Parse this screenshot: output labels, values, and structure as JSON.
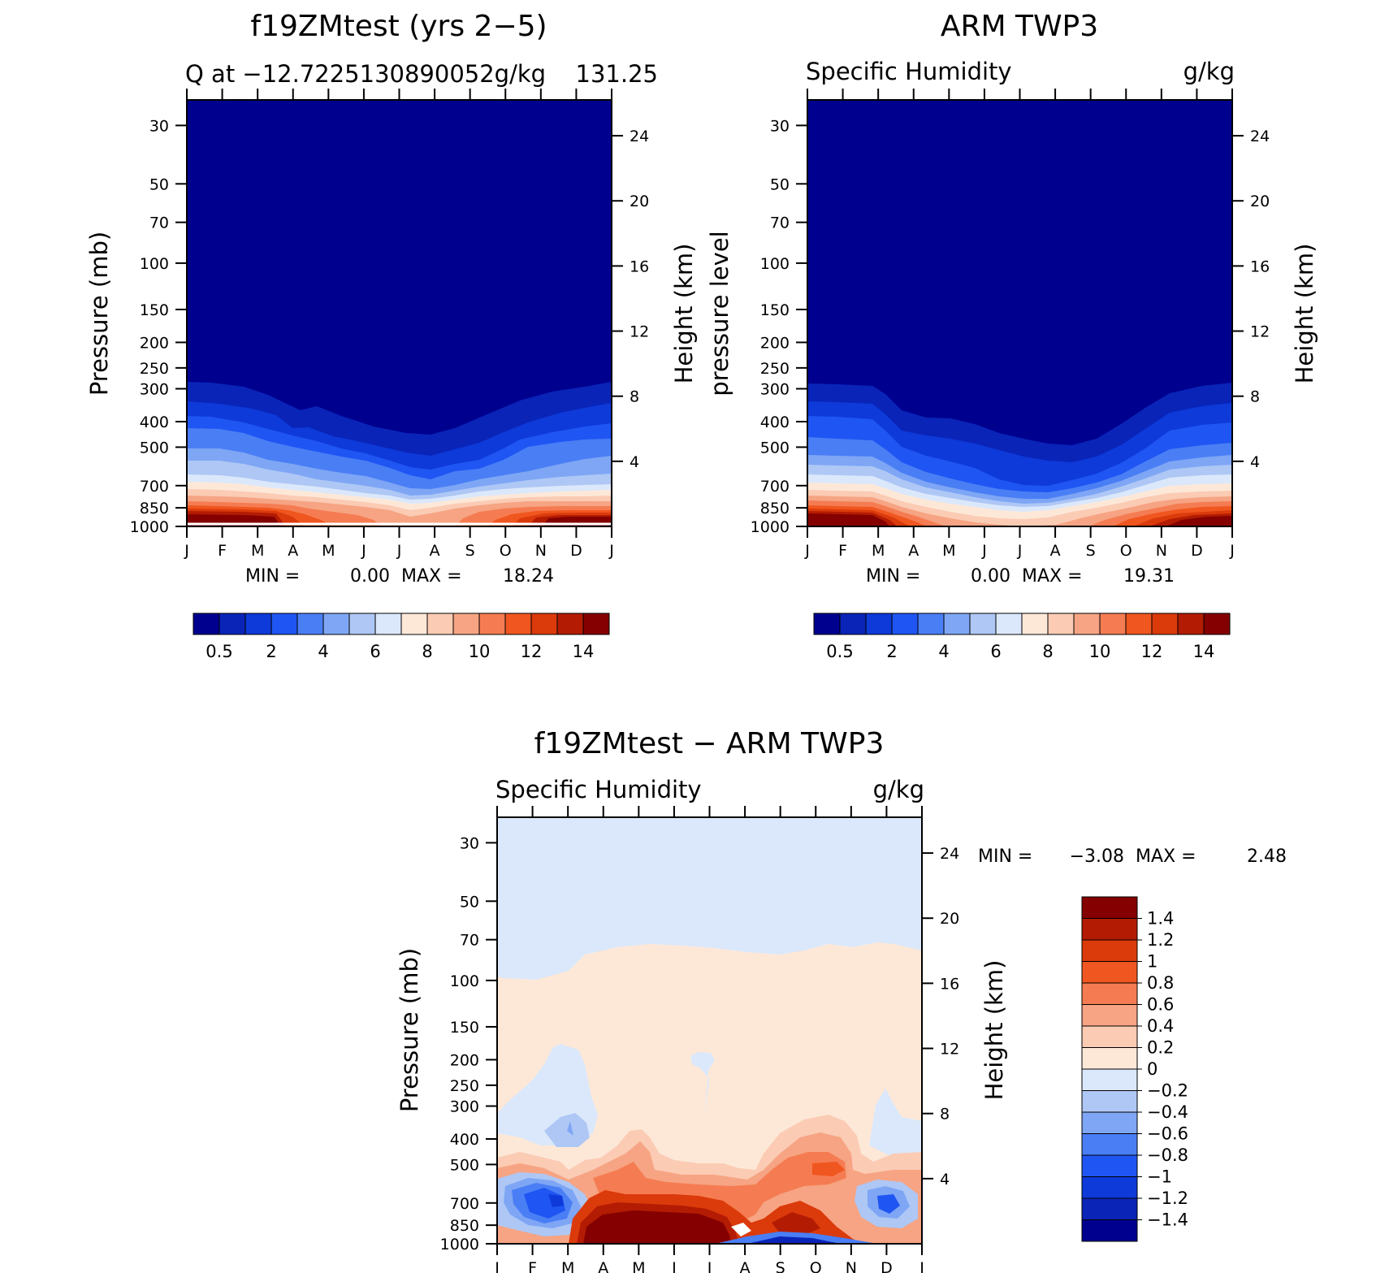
{
  "chart_data": [
    {
      "type": "heatmap",
      "id": "p1",
      "title": "f19ZMtest (yrs 2−5)",
      "left_label": "Q at −12.7225130890052g/kg",
      "right_label": "131.25",
      "xlabel": "",
      "ylabel": "Pressure (mb)",
      "y2label": "Height (km)",
      "x_ticks": [
        "J",
        "F",
        "M",
        "A",
        "M",
        "J",
        "J",
        "A",
        "S",
        "O",
        "N",
        "D",
        "J"
      ],
      "y_ticks": [
        30,
        50,
        70,
        100,
        150,
        200,
        250,
        300,
        400,
        500,
        700,
        850,
        1000
      ],
      "y2_ticks": [
        24,
        20,
        16,
        12,
        8,
        4
      ],
      "ylim": [
        1000,
        24
      ],
      "stats": {
        "min_label": "MIN =",
        "min": "0.00",
        "max_label": "MAX =",
        "max": "18.24"
      },
      "legend_levels": [
        0.5,
        1,
        2,
        3,
        4,
        5,
        6,
        7,
        8,
        9,
        10,
        11,
        12,
        13,
        14
      ],
      "legend_labels": [
        "0.5",
        "2",
        "4",
        "6",
        "8",
        "10",
        "12",
        "14"
      ],
      "colors": [
        "#00008f",
        "#0a24b8",
        "#0d3ad9",
        "#1f55f2",
        "#4a7ef5",
        "#7ea6f5",
        "#aec7f5",
        "#dbe8fb",
        "#fde8d8",
        "#fbcbb4",
        "#f6a483",
        "#f57c52",
        "#f0561f",
        "#db3a0b",
        "#b31c03",
        "#850000"
      ]
    },
    {
      "type": "heatmap",
      "id": "p2",
      "title": "ARM TWP3",
      "left_label": "Specific Humidity",
      "right_label": "g/kg",
      "xlabel": "",
      "ylabel": "pressure level",
      "y2label": "Height (km)",
      "x_ticks": [
        "J",
        "F",
        "M",
        "A",
        "M",
        "J",
        "J",
        "A",
        "S",
        "O",
        "N",
        "D",
        "J"
      ],
      "y_ticks": [
        30,
        50,
        70,
        100,
        150,
        200,
        250,
        300,
        400,
        500,
        700,
        850,
        1000
      ],
      "y2_ticks": [
        24,
        20,
        16,
        12,
        8,
        4
      ],
      "ylim": [
        1000,
        24
      ],
      "stats": {
        "min_label": "MIN =",
        "min": "0.00",
        "max_label": "MAX =",
        "max": "19.31"
      },
      "legend_levels": [
        0.5,
        1,
        2,
        3,
        4,
        5,
        6,
        7,
        8,
        9,
        10,
        11,
        12,
        13,
        14
      ],
      "legend_labels": [
        "0.5",
        "2",
        "4",
        "6",
        "8",
        "10",
        "12",
        "14"
      ]
    },
    {
      "type": "heatmap",
      "id": "p3",
      "title": "f19ZMtest − ARM TWP3",
      "left_label": "Specific Humidity",
      "right_label": "g/kg",
      "xlabel": "",
      "ylabel": "Pressure (mb)",
      "y2label": "Height (km)",
      "x_ticks": [
        "J",
        "F",
        "M",
        "A",
        "M",
        "J",
        "J",
        "A",
        "S",
        "O",
        "N",
        "D",
        "J"
      ],
      "y_ticks": [
        30,
        50,
        70,
        100,
        150,
        200,
        250,
        300,
        400,
        500,
        700,
        850,
        1000
      ],
      "y2_ticks": [
        24,
        20,
        16,
        12,
        8,
        4
      ],
      "ylim": [
        1000,
        24
      ],
      "stats": {
        "min_label": "MIN =",
        "min": "−3.08",
        "max_label": "MAX =",
        "max": "2.48"
      },
      "legend_levels": [
        1.4,
        1.2,
        1,
        0.8,
        0.6,
        0.4,
        0.2,
        0,
        -0.2,
        -0.4,
        -0.6,
        -0.8,
        -1,
        -1.2,
        -1.4
      ],
      "legend_labels": [
        "1.4",
        "1.2",
        "1",
        "0.8",
        "0.6",
        "0.4",
        "0.2",
        "0",
        "−0.2",
        "−0.4",
        "−0.6",
        "−0.8",
        "−1",
        "−1.2",
        "−1.4"
      ],
      "colors": [
        "#850000",
        "#b31c03",
        "#db3a0b",
        "#f0561f",
        "#f57c52",
        "#f6a483",
        "#fbcbb4",
        "#fde8d8",
        "#dbe8fb",
        "#aec7f5",
        "#7ea6f5",
        "#4a7ef5",
        "#1f55f2",
        "#0d3ad9",
        "#0a24b8",
        "#00008f"
      ]
    }
  ]
}
